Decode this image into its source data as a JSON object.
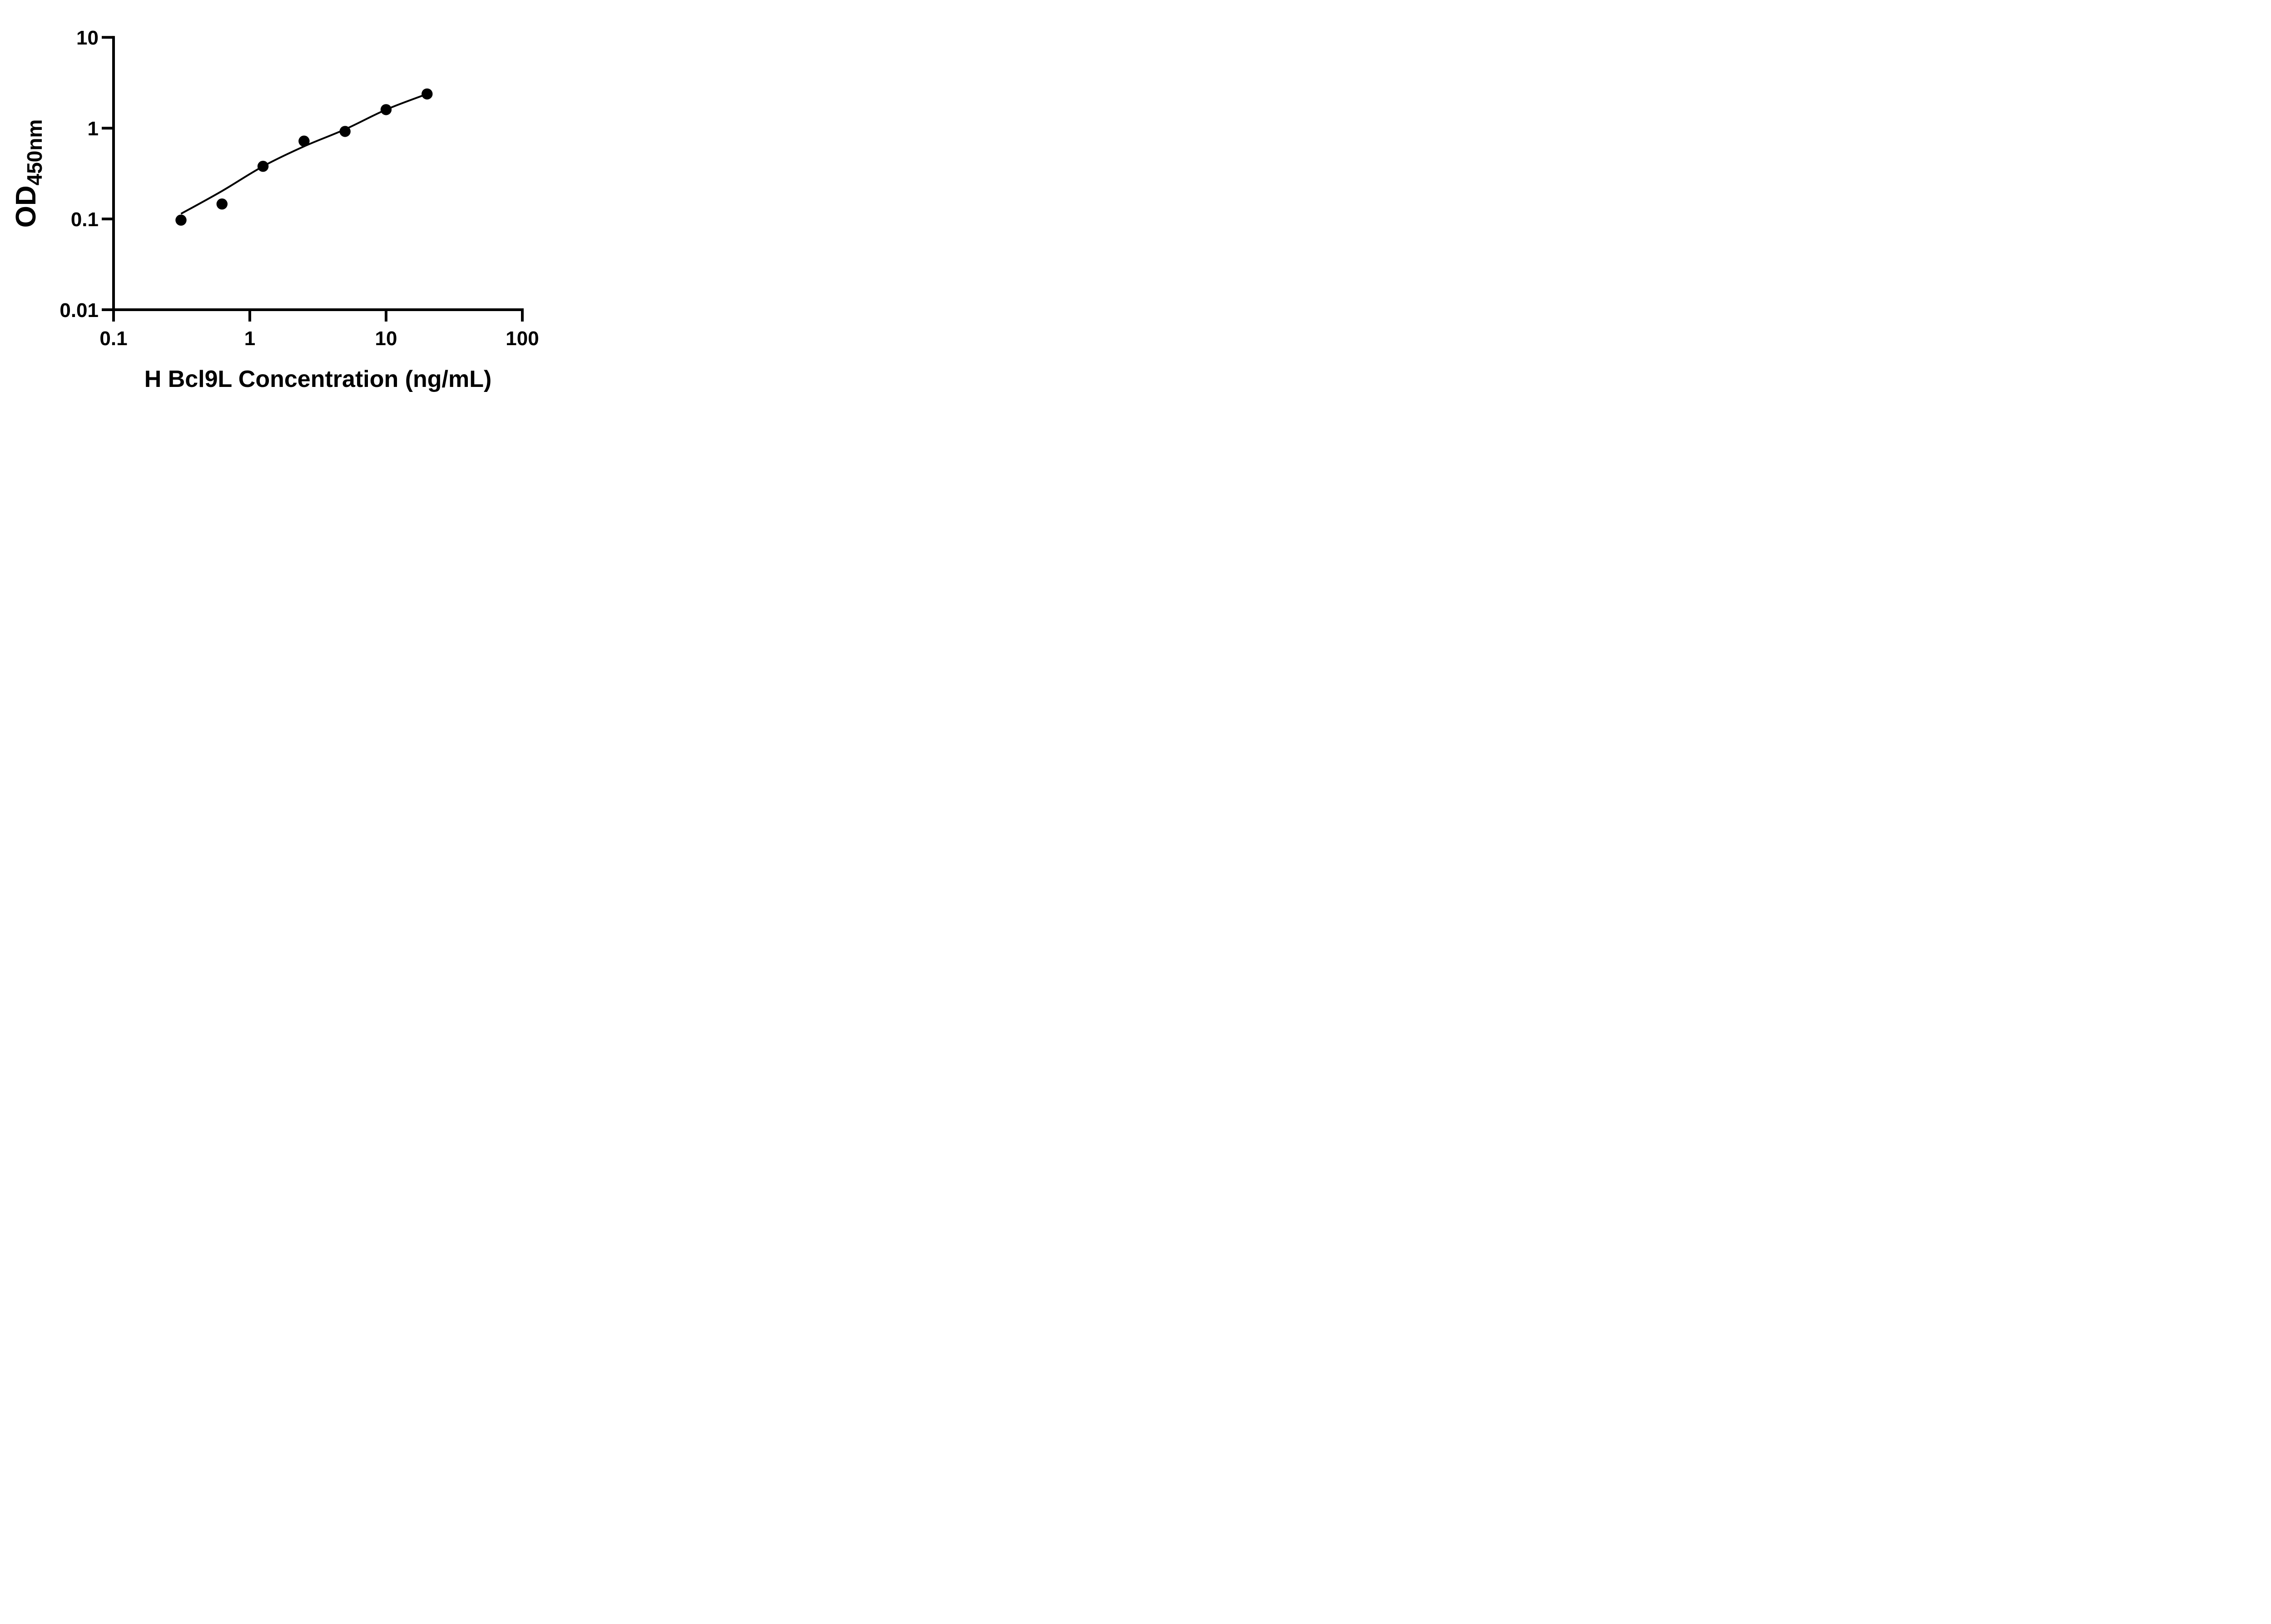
{
  "figure": {
    "background": "#ffffff",
    "ink_color": "#000000"
  },
  "chart_data": {
    "type": "scatter",
    "title": "",
    "xlabel": "H Bcl9L Concentration (ng/mL)",
    "ylabel_main": "OD",
    "ylabel_sub": "450nm",
    "x_scale": "log10",
    "y_scale": "log10",
    "xlim": [
      0.1,
      100
    ],
    "ylim": [
      0.01,
      10
    ],
    "grid": false,
    "legend_position": "none",
    "x_ticks": [
      {
        "value": 0.1,
        "label": "0.1"
      },
      {
        "value": 1,
        "label": "1"
      },
      {
        "value": 10,
        "label": "10"
      },
      {
        "value": 100,
        "label": "100"
      }
    ],
    "y_ticks": [
      {
        "value": 0.01,
        "label": "0.01"
      },
      {
        "value": 0.1,
        "label": "0.1"
      },
      {
        "value": 1,
        "label": "1"
      },
      {
        "value": 10,
        "label": "10"
      }
    ],
    "series": [
      {
        "name": "standard-points",
        "type": "scatter",
        "marker": "filled-circle",
        "color": "#000000",
        "x": [
          0.3125,
          0.625,
          1.25,
          2.5,
          5,
          10,
          20
        ],
        "y": [
          0.097,
          0.146,
          0.38,
          0.72,
          0.92,
          1.6,
          2.38
        ]
      },
      {
        "name": "fit-curve",
        "type": "line",
        "color": "#000000",
        "x": [
          0.3125,
          0.625,
          1.25,
          2.5,
          5,
          10,
          20
        ],
        "y": [
          0.114,
          0.203,
          0.38,
          0.63,
          0.97,
          1.6,
          2.38
        ]
      }
    ]
  }
}
